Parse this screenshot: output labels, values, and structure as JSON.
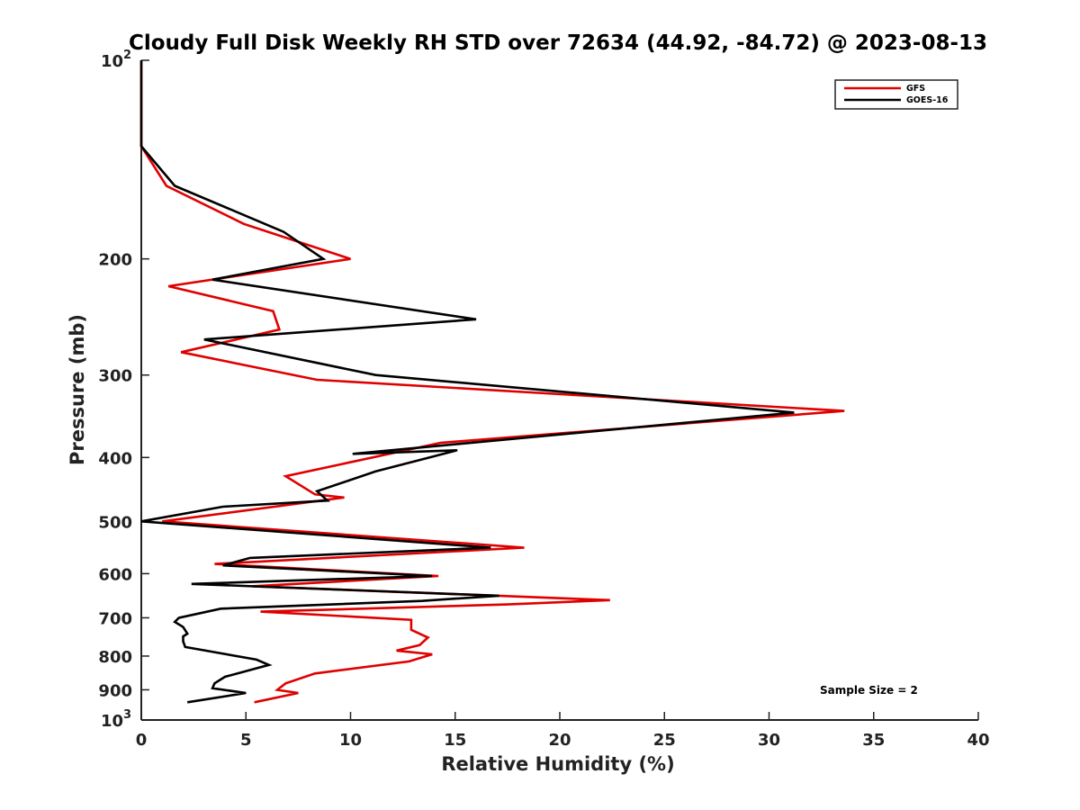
{
  "chart_data": {
    "type": "line",
    "title": "Cloudy Full Disk Weekly RH STD over 72634 (44.92, -84.72) @ 2023-08-13",
    "xlabel": "Relative Humidity (%)",
    "ylabel": "Pressure (mb)",
    "xlim": [
      0,
      40
    ],
    "ylim": [
      100,
      1000
    ],
    "y_scale": "log",
    "y_reversed": true,
    "grid": false,
    "legend_position": "top-right",
    "x_ticks": [
      "0",
      "5",
      "10",
      "15",
      "20",
      "25",
      "30",
      "35",
      "40"
    ],
    "y_ticks": [
      {
        "value": 100,
        "base": "10",
        "exp": "2"
      },
      {
        "value": 200,
        "label": "200"
      },
      {
        "value": 300,
        "label": "300"
      },
      {
        "value": 400,
        "label": "400"
      },
      {
        "value": 500,
        "label": "500"
      },
      {
        "value": 600,
        "label": "600"
      },
      {
        "value": 700,
        "label": "700"
      },
      {
        "value": 800,
        "label": "800"
      },
      {
        "value": 900,
        "label": "900"
      },
      {
        "value": 1000,
        "base": "10",
        "exp": "3"
      }
    ],
    "annotation": "Sample Size = 2",
    "series": [
      {
        "name": "GFS",
        "color": "#e00000",
        "points": [
          [
            0.0,
            100
          ],
          [
            0.0,
            115
          ],
          [
            0.0,
            135
          ],
          [
            1.2,
            155
          ],
          [
            4.9,
            177
          ],
          [
            10.0,
            200
          ],
          [
            1.3,
            220
          ],
          [
            6.3,
            240
          ],
          [
            6.6,
            256
          ],
          [
            1.9,
            277
          ],
          [
            8.4,
            305
          ],
          [
            33.6,
            340
          ],
          [
            14.3,
            380
          ],
          [
            6.9,
            427
          ],
          [
            8.3,
            455
          ],
          [
            9.7,
            460
          ],
          [
            1.0,
            500
          ],
          [
            18.3,
            548
          ],
          [
            3.5,
            580
          ],
          [
            14.2,
            605
          ],
          [
            5.3,
            627
          ],
          [
            22.4,
            658
          ],
          [
            17.5,
            668
          ],
          [
            5.7,
            685
          ],
          [
            12.9,
            705
          ],
          [
            12.9,
            730
          ],
          [
            13.7,
            750
          ],
          [
            13.3,
            770
          ],
          [
            12.2,
            785
          ],
          [
            13.9,
            795
          ],
          [
            12.8,
            815
          ],
          [
            8.3,
            850
          ],
          [
            6.9,
            880
          ],
          [
            6.5,
            900
          ],
          [
            7.5,
            910
          ],
          [
            5.4,
            940
          ]
        ]
      },
      {
        "name": "GOES-16",
        "color": "#000000",
        "points": [
          [
            0.0,
            100
          ],
          [
            0.0,
            115
          ],
          [
            0.0,
            135
          ],
          [
            1.6,
            155
          ],
          [
            6.8,
            182
          ],
          [
            8.7,
            200
          ],
          [
            3.4,
            215
          ],
          [
            16.0,
            247
          ],
          [
            3.0,
            265
          ],
          [
            11.2,
            300
          ],
          [
            31.2,
            342
          ],
          [
            10.1,
            395
          ],
          [
            15.1,
            390
          ],
          [
            11.2,
            420
          ],
          [
            8.4,
            450
          ],
          [
            8.9,
            465
          ],
          [
            3.9,
            475
          ],
          [
            0.0,
            500
          ],
          [
            16.7,
            548
          ],
          [
            5.2,
            568
          ],
          [
            3.9,
            583
          ],
          [
            13.9,
            605
          ],
          [
            2.4,
            622
          ],
          [
            17.1,
            648
          ],
          [
            13.4,
            660
          ],
          [
            3.8,
            678
          ],
          [
            1.8,
            700
          ],
          [
            1.6,
            710
          ],
          [
            2.0,
            723
          ],
          [
            2.2,
            740
          ],
          [
            2.0,
            747
          ],
          [
            2.0,
            760
          ],
          [
            2.1,
            775
          ],
          [
            5.5,
            810
          ],
          [
            6.1,
            825
          ],
          [
            4.0,
            860
          ],
          [
            3.5,
            880
          ],
          [
            3.4,
            895
          ],
          [
            5.0,
            910
          ],
          [
            2.2,
            940
          ]
        ]
      }
    ]
  }
}
